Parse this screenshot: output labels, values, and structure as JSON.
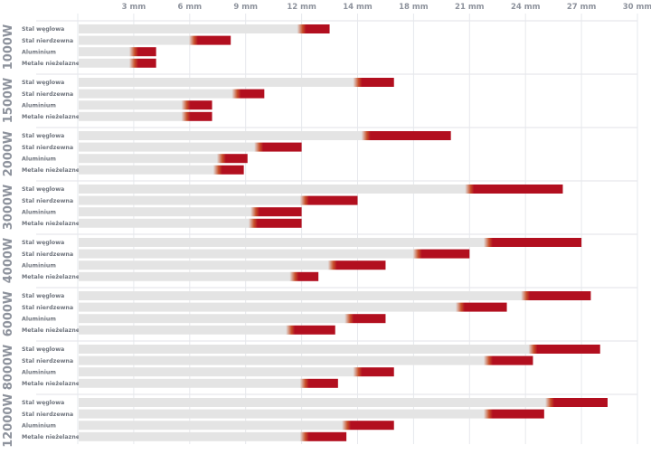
{
  "chart_data": {
    "type": "bar",
    "orientation": "horizontal",
    "stacked_ranges": true,
    "x_ticks": [
      "3 mm",
      "6 mm",
      "9 mm",
      "12 mm",
      "14 mm",
      "18 mm",
      "21 mm",
      "24 mm",
      "27 mm",
      "30 mm"
    ],
    "x_tick_values": [
      3,
      6,
      9,
      12,
      14,
      18,
      21,
      24,
      27,
      30
    ],
    "xlim": [
      0,
      30
    ],
    "grid": true,
    "colors": {
      "quality_cut": "#e4e4e4",
      "max_cut": "#b20f1f",
      "grid": "#e6e8ec"
    },
    "materials": [
      "Stal węglowa",
      "Stal nierdzewna",
      "Aluminium",
      "Metale nieżelazne"
    ],
    "groups": [
      {
        "label": "1000W",
        "quality": [
          12,
          6.2,
          3,
          3
        ],
        "max": [
          13,
          8.2,
          4.2,
          4.2
        ]
      },
      {
        "label": "1500W",
        "quality": [
          14,
          8.5,
          5.8,
          5.8
        ],
        "max": [
          16.6,
          10,
          7.2,
          7.2
        ]
      },
      {
        "label": "2000W",
        "quality": [
          14.6,
          9.7,
          7.7,
          7.5
        ],
        "max": [
          20,
          12,
          9.1,
          8.9
        ]
      },
      {
        "label": "3000W",
        "quality": [
          21,
          12.1,
          9.5,
          9.4
        ],
        "max": [
          26,
          14,
          12,
          12
        ]
      },
      {
        "label": "4000W",
        "quality": [
          22,
          18.2,
          13.1,
          11.6
        ],
        "max": [
          27,
          21,
          16,
          12.6
        ]
      },
      {
        "label": "6000W",
        "quality": [
          24,
          20.5,
          13.7,
          11.4
        ],
        "max": [
          27.5,
          23,
          16,
          13.2
        ]
      },
      {
        "label": "8000W",
        "quality": [
          24.4,
          22,
          14,
          12.1
        ],
        "max": [
          28,
          24.4,
          16.6,
          13.3
        ]
      },
      {
        "label": "12000W",
        "quality": [
          25.3,
          22,
          13.6,
          12.1
        ],
        "max": [
          28.4,
          25,
          16.6,
          13.6
        ]
      }
    ]
  }
}
